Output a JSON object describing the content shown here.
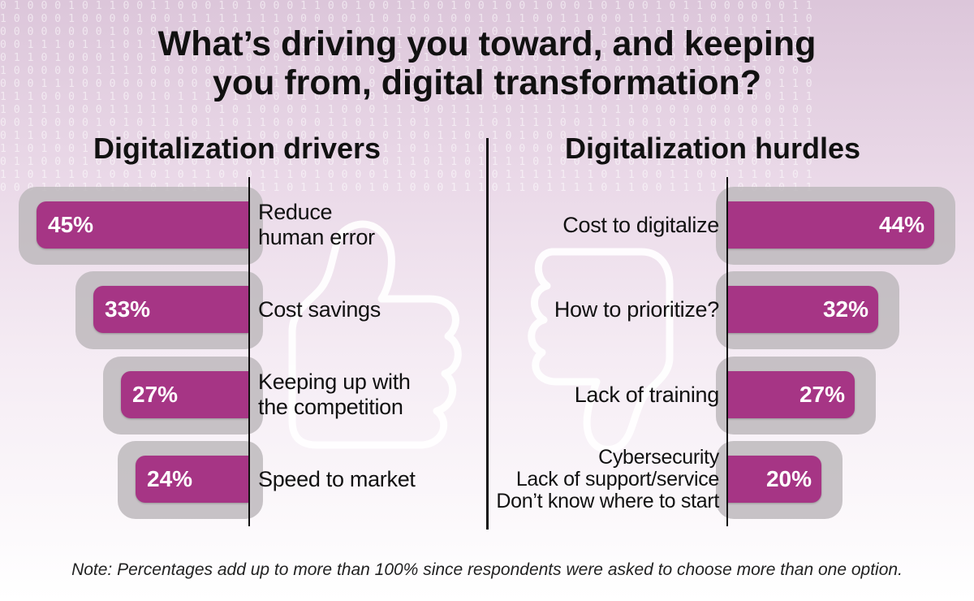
{
  "title_line1": "What’s driving you toward, and keeping",
  "title_line2": "you from, digital transformation?",
  "note": "Note: Percentages add up to more than 100% since respondents were asked to choose more than one option.",
  "colors": {
    "bar": "#a63585",
    "bar_shadow": "#bdb9bc",
    "background_top": "#dcc6da"
  },
  "icons": [
    "thumbs-up-icon",
    "thumbs-down-icon"
  ],
  "chart_data": [
    {
      "type": "bar",
      "title": "Digitalization drivers",
      "orientation": "horizontal",
      "categories": [
        "Reduce human error",
        "Cost savings",
        "Keeping up with the competition",
        "Speed to market"
      ],
      "category_lines": [
        [
          "Reduce",
          "human error"
        ],
        [
          "Cost savings"
        ],
        [
          "Keeping up with",
          "the competition"
        ],
        [
          "Speed to market"
        ]
      ],
      "values": [
        45,
        33,
        27,
        24
      ],
      "value_labels": [
        "45%",
        "33%",
        "27%",
        "24%"
      ],
      "unit": "%"
    },
    {
      "type": "bar",
      "title": "Digitalization hurdles",
      "orientation": "horizontal",
      "categories": [
        "Cost to digitalize",
        "How to prioritize?",
        "Lack of training",
        "Cybersecurity / Lack of support/service / Don’t know where to start"
      ],
      "category_lines": [
        [
          "Cost to digitalize"
        ],
        [
          "How to prioritize?"
        ],
        [
          "Lack of training"
        ],
        [
          "Cybersecurity",
          "Lack of support/service",
          "Don’t know where to start"
        ]
      ],
      "values": [
        44,
        32,
        27,
        20
      ],
      "value_labels": [
        "44%",
        "32%",
        "27%",
        "20%"
      ],
      "unit": "%"
    }
  ]
}
